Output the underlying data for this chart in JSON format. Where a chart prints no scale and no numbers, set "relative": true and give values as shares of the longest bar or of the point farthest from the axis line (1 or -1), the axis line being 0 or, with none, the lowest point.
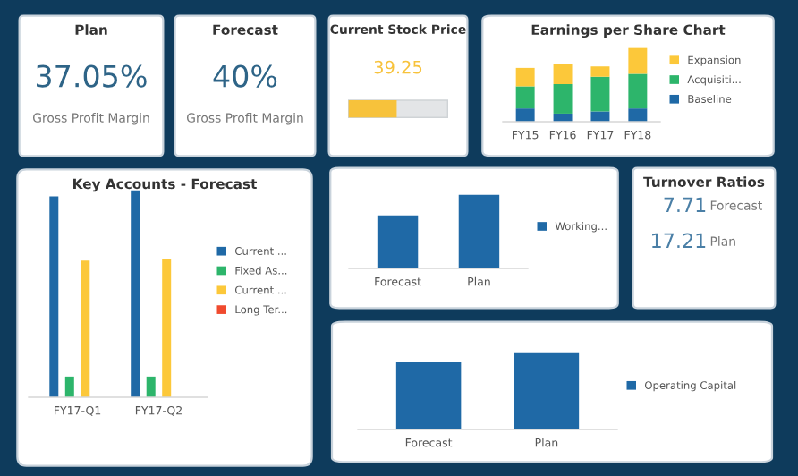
{
  "chart_data": [
    {
      "type": "other",
      "title": "Plan",
      "annotations": [
        "37.05%",
        "Gross Profit Margin"
      ]
    },
    {
      "type": "other",
      "title": "Forecast",
      "annotations": [
        "40%",
        "Gross Profit Margin"
      ]
    },
    {
      "type": "other",
      "title": "Current Stock Price",
      "annotations": [
        "39.25"
      ]
    },
    {
      "type": "bar",
      "title": "Earnings per Share Chart",
      "relative": true,
      "stacked": true,
      "legend": "right",
      "categories": [
        "FY15",
        "FY16",
        "FY17",
        "FY18"
      ],
      "series": [
        {
          "name": "Baseline",
          "color": "#1f69a6",
          "values": [
            0.18,
            0.11,
            0.14,
            0.18
          ]
        },
        {
          "name": "Acquisiti...",
          "color": "#2db56b",
          "values": [
            0.3,
            0.4,
            0.47,
            0.47
          ]
        },
        {
          "name": "Expansion",
          "color": "#fcc83a",
          "values": [
            0.25,
            0.27,
            0.14,
            0.35
          ]
        }
      ]
    },
    {
      "type": "bar",
      "title": "Key Accounts - Forecast",
      "relative": true,
      "legend": "right",
      "categories": [
        "FY17-Q1",
        "FY17-Q2"
      ],
      "series": [
        {
          "name": "Current ...",
          "color": "#1f69a6",
          "values": [
            0.97,
            1
          ]
        },
        {
          "name": "Fixed As...",
          "color": "#2db56b",
          "values": [
            0.1,
            0.1
          ]
        },
        {
          "name": "Current ...",
          "color": "#fcc83a",
          "values": [
            0.66,
            0.67
          ]
        },
        {
          "name": "Long Ter...",
          "color": "#f04a2e",
          "values": [
            null,
            null
          ]
        }
      ]
    },
    {
      "type": "bar",
      "relative": true,
      "legend": "right",
      "categories": [
        "Forecast",
        "Plan"
      ],
      "series": [
        {
          "name": "Working...",
          "color": "#1f69a6",
          "values": [
            0.72,
            1
          ]
        }
      ]
    },
    {
      "type": "other",
      "title": "Turnover Ratios",
      "annotations": [
        "7.71",
        "Forecast",
        "17.21",
        "Plan"
      ]
    },
    {
      "type": "bar",
      "relative": true,
      "legend": "right",
      "categories": [
        "Forecast",
        "Plan"
      ],
      "series": [
        {
          "name": "Operating Capital",
          "color": "#1f69a6",
          "values": [
            0.87,
            1
          ]
        }
      ]
    }
  ]
}
